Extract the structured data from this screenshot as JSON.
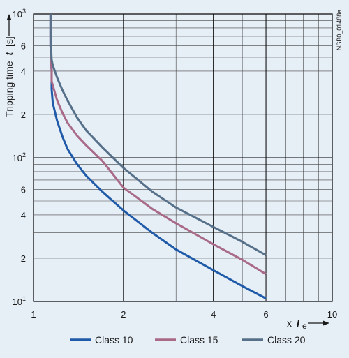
{
  "chart_data": {
    "type": "line",
    "x_scale": "log",
    "y_scale": "log",
    "xlim": [
      1,
      10
    ],
    "ylim": [
      10,
      1000
    ],
    "grid": true,
    "legend_position": "bottom",
    "ylabel": "Tripping time",
    "ylabel_symbol": "t",
    "ylabel_unit": "[s]",
    "xlabel_prefix": "x",
    "xlabel_symbol": "I",
    "xlabel_subscript": "e",
    "code": "NSB0_01488a",
    "x_ticks": [
      {
        "value": 1,
        "label": "1"
      },
      {
        "value": 2,
        "label": "2"
      },
      {
        "value": 4,
        "label": "4"
      },
      {
        "value": 6,
        "label": "6"
      },
      {
        "value": 10,
        "label": "10"
      }
    ],
    "y_ticks": [
      {
        "value": 10,
        "base": "10",
        "exp": "1"
      },
      {
        "value": 20,
        "base": "2",
        "exp": ""
      },
      {
        "value": 40,
        "base": "4",
        "exp": ""
      },
      {
        "value": 60,
        "base": "6",
        "exp": ""
      },
      {
        "value": 100,
        "base": "10",
        "exp": "2"
      },
      {
        "value": 200,
        "base": "2",
        "exp": ""
      },
      {
        "value": 400,
        "base": "4",
        "exp": ""
      },
      {
        "value": 600,
        "base": "6",
        "exp": ""
      },
      {
        "value": 1000,
        "base": "10",
        "exp": "3"
      }
    ],
    "x_gridlines": [
      1,
      2,
      3,
      4,
      5,
      6,
      7,
      8,
      9,
      10
    ],
    "y_gridlines": [
      10,
      20,
      30,
      40,
      50,
      60,
      70,
      80,
      90,
      100,
      200,
      300,
      400,
      500,
      600,
      700,
      800,
      900,
      1000
    ],
    "series": [
      {
        "name": "Class 10",
        "color": "#1f5aa8",
        "points": [
          [
            1.14,
            1000
          ],
          [
            1.14,
            600
          ],
          [
            1.15,
            400
          ],
          [
            1.15,
            300
          ],
          [
            1.16,
            240
          ],
          [
            1.2,
            180
          ],
          [
            1.25,
            140
          ],
          [
            1.3,
            115
          ],
          [
            1.4,
            90
          ],
          [
            1.5,
            75
          ],
          [
            1.7,
            58
          ],
          [
            2,
            43
          ],
          [
            2.5,
            30
          ],
          [
            3,
            23
          ],
          [
            4,
            16.5
          ],
          [
            5,
            12.8
          ],
          [
            6,
            10.5
          ]
        ]
      },
      {
        "name": "Class 15",
        "color": "#a86a86",
        "points": [
          [
            1.14,
            1000
          ],
          [
            1.14,
            600
          ],
          [
            1.15,
            400
          ],
          [
            1.15,
            340
          ],
          [
            1.2,
            250
          ],
          [
            1.25,
            205
          ],
          [
            1.3,
            175
          ],
          [
            1.4,
            142
          ],
          [
            1.5,
            122
          ],
          [
            1.7,
            95
          ],
          [
            2,
            62
          ],
          [
            2.5,
            44
          ],
          [
            3,
            35
          ],
          [
            4,
            25
          ],
          [
            5,
            19.5
          ],
          [
            6,
            15.5
          ]
        ]
      },
      {
        "name": "Class 20",
        "color": "#56708a",
        "points": [
          [
            1.14,
            1000
          ],
          [
            1.14,
            700
          ],
          [
            1.15,
            480
          ],
          [
            1.16,
            440
          ],
          [
            1.2,
            360
          ],
          [
            1.25,
            295
          ],
          [
            1.3,
            250
          ],
          [
            1.4,
            190
          ],
          [
            1.5,
            155
          ],
          [
            1.7,
            118
          ],
          [
            2,
            85
          ],
          [
            2.5,
            58
          ],
          [
            3,
            45
          ],
          [
            4,
            33
          ],
          [
            5,
            26
          ],
          [
            6,
            21
          ]
        ]
      }
    ]
  }
}
